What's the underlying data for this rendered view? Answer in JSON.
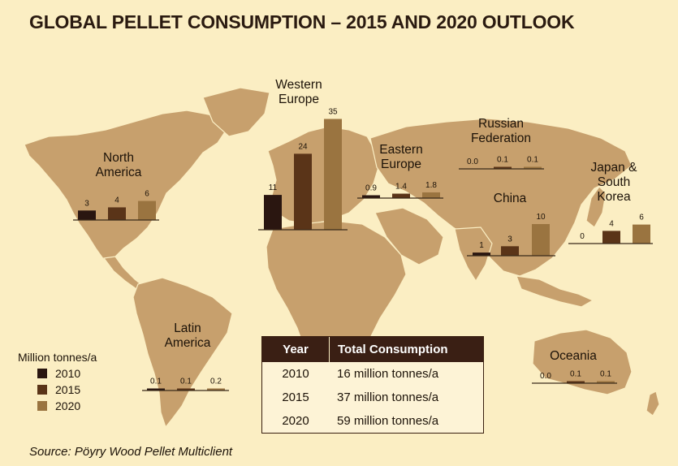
{
  "title": "GLOBAL PELLET CONSUMPTION – 2015 AND 2020 OUTLOOK",
  "source": "Source: Pöyry Wood Pellet Multiclient",
  "legend": {
    "title": "Million tonnes/a",
    "items": [
      {
        "label": "2010",
        "color": "#2a1610"
      },
      {
        "label": "2015",
        "color": "#5a3418"
      },
      {
        "label": "2020",
        "color": "#9a7440"
      }
    ]
  },
  "table": {
    "headers": [
      "Year",
      "Total Consumption"
    ],
    "rows": [
      [
        "2010",
        "16 million tonnes/a"
      ],
      [
        "2015",
        "37 million tonnes/a"
      ],
      [
        "2020",
        "59 million tonnes/a"
      ]
    ]
  },
  "chart_data": {
    "type": "bar",
    "series_names": [
      "2010",
      "2015",
      "2020"
    ],
    "regions": [
      {
        "name": "North America",
        "labels": [
          "3",
          "4",
          "6"
        ],
        "values": [
          3,
          4,
          6
        ]
      },
      {
        "name": "Western Europe",
        "labels": [
          "11",
          "24",
          "35"
        ],
        "values": [
          11,
          24,
          35
        ]
      },
      {
        "name": "Eastern Europe",
        "labels": [
          "0.9",
          "1.4",
          "1.8"
        ],
        "values": [
          0.9,
          1.4,
          1.8
        ]
      },
      {
        "name": "Russian Federation",
        "labels": [
          "0.0",
          "0.1",
          "0.1"
        ],
        "values": [
          0.0,
          0.1,
          0.1
        ]
      },
      {
        "name": "China",
        "labels": [
          "1",
          "3",
          "10"
        ],
        "values": [
          1,
          3,
          10
        ]
      },
      {
        "name": "Japan & South Korea",
        "labels": [
          "0",
          "4",
          "6"
        ],
        "values": [
          0,
          4,
          6
        ]
      },
      {
        "name": "Latin America",
        "labels": [
          "0.1",
          "0.1",
          "0.2"
        ],
        "values": [
          0.1,
          0.1,
          0.2
        ]
      },
      {
        "name": "Oceania",
        "labels": [
          "0.0",
          "0.1",
          "0.1"
        ],
        "values": [
          0.0,
          0.1,
          0.1
        ]
      }
    ]
  }
}
